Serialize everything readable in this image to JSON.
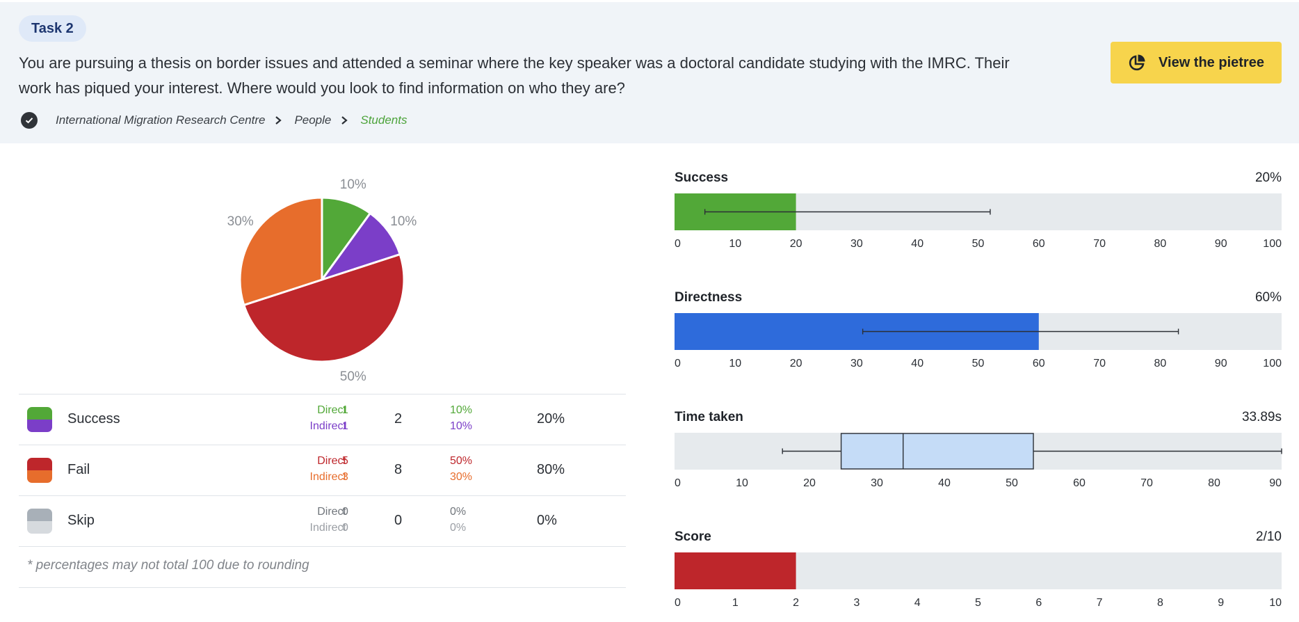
{
  "task": {
    "badge": "Task 2",
    "question_line1": "You are pursuing a thesis on border issues and attended a seminar where the key speaker was a doctoral candidate studying with the IMRC. Their",
    "question_line2": "work has piqued your interest. Where would you look to find information on who they are?",
    "breadcrumb": [
      "International Migration Research Centre",
      "People",
      "Students"
    ],
    "pietree_button": "View the pietree"
  },
  "colors": {
    "success_direct": "#52a838",
    "success_indirect": "#7b3ec8",
    "fail_direct": "#be262b",
    "fail_indirect": "#e76d2c",
    "skip_direct": "#a8b0b8",
    "skip_indirect": "#d6dade",
    "directness_bar": "#2e6bdb",
    "time_box": "#c5dcf7",
    "track": "#e6eaed",
    "accent_yellow": "#f7d44c",
    "breadcrumb_current": "#4ca33a"
  },
  "results": {
    "rows": [
      {
        "label": "Success",
        "direct_label": "Direct",
        "direct_count": "1",
        "direct_pct": "10%",
        "indirect_label": "Indirect",
        "indirect_count": "1",
        "indirect_pct": "10%",
        "total": "2",
        "percent": "20%"
      },
      {
        "label": "Fail",
        "direct_label": "Direct",
        "direct_count": "5",
        "direct_pct": "50%",
        "indirect_label": "Indirect",
        "indirect_count": "3",
        "indirect_pct": "30%",
        "total": "8",
        "percent": "80%"
      },
      {
        "label": "Skip",
        "direct_label": "Direct",
        "direct_count": "0",
        "direct_pct": "0%",
        "indirect_label": "Indirect",
        "indirect_count": "0",
        "indirect_pct": "0%",
        "total": "0",
        "percent": "0%"
      }
    ],
    "footnote": "* percentages may not total 100 due to rounding"
  },
  "chart_data": [
    {
      "type": "pie",
      "title": "",
      "slices": [
        {
          "name": "Success direct",
          "value": 10,
          "label": "10%"
        },
        {
          "name": "Success indirect",
          "value": 10,
          "label": "10%"
        },
        {
          "name": "Fail direct",
          "value": 50,
          "label": "50%"
        },
        {
          "name": "Fail indirect",
          "value": 30,
          "label": "30%"
        }
      ]
    },
    {
      "type": "bar",
      "title": "Success",
      "value_label": "20%",
      "value": 20,
      "error_range": [
        5,
        52
      ],
      "xlim": [
        0,
        100
      ],
      "ticks": [
        "0",
        "10",
        "20",
        "30",
        "40",
        "50",
        "60",
        "70",
        "80",
        "90",
        "100"
      ]
    },
    {
      "type": "bar",
      "title": "Directness",
      "value_label": "60%",
      "value": 60,
      "error_range": [
        31,
        83
      ],
      "xlim": [
        0,
        100
      ],
      "ticks": [
        "0",
        "10",
        "20",
        "30",
        "40",
        "50",
        "60",
        "70",
        "80",
        "90",
        "100"
      ]
    },
    {
      "type": "box",
      "title": "Time taken",
      "value_label": "33.89s",
      "whisker_low": 16,
      "q1": 24.7,
      "median": 33.89,
      "q3": 53.2,
      "whisker_high": 90,
      "xlim": [
        0,
        90
      ],
      "ticks": [
        "0",
        "10",
        "20",
        "30",
        "40",
        "50",
        "60",
        "70",
        "80",
        "90"
      ]
    },
    {
      "type": "bar",
      "title": "Score",
      "value_label": "2/10",
      "value": 2,
      "xlim": [
        0,
        10
      ],
      "ticks": [
        "0",
        "1",
        "2",
        "3",
        "4",
        "5",
        "6",
        "7",
        "8",
        "9",
        "10"
      ]
    }
  ]
}
